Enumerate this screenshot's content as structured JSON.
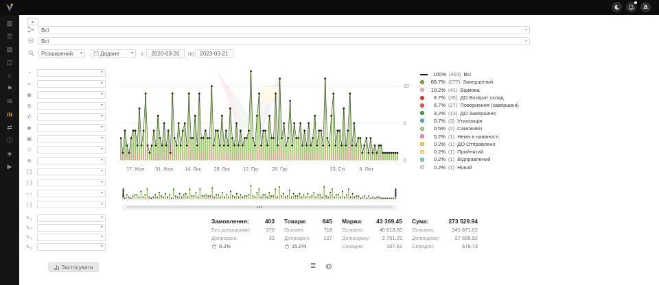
{
  "topbar": {
    "icons": [
      {
        "name": "theme-icon"
      },
      {
        "name": "bell-icon",
        "badge": true
      },
      {
        "name": "notifications-muted-icon"
      }
    ]
  },
  "rail": {
    "items": [
      {
        "name": "dashboard-icon"
      },
      {
        "name": "orders-icon"
      },
      {
        "name": "catalog-icon"
      },
      {
        "name": "clients-icon"
      },
      {
        "name": "shop-icon"
      },
      {
        "name": "tags-icon"
      },
      {
        "name": "campaigns-icon"
      },
      {
        "name": "analytics-icon",
        "active": true
      },
      {
        "name": "integrations-icon"
      },
      {
        "name": "info-icon"
      },
      {
        "name": "apps-icon"
      },
      {
        "name": "video-icon"
      }
    ]
  },
  "header": {
    "filter1": {
      "value": "Всі"
    },
    "filter2": {
      "value": "Всі"
    },
    "search_mode": {
      "value": "Розширений"
    },
    "date_field": {
      "value": "Додане"
    },
    "from_label": "з",
    "date_from": "2020-03-20",
    "to_label": "по",
    "date_to": "2023-03-21"
  },
  "filters": {
    "rows": [
      {
        "icon": "pie-icon"
      },
      {
        "icon": "trend-icon"
      },
      {
        "icon": "person-icon"
      },
      {
        "icon": "group-icon"
      },
      {
        "icon": "phone-icon"
      },
      {
        "icon": "shield-icon"
      },
      {
        "icon": "box-icon"
      },
      {
        "icon": "funnel-icon"
      },
      {
        "icon": "globe-icon"
      },
      {
        "icon": "square-brackets-icon"
      },
      {
        "icon": "curly-brackets-icon"
      },
      {
        "icon": "angle-brackets-icon"
      },
      {
        "icon": "round-brackets-icon"
      },
      {
        "icon": "pencil-1-icon"
      },
      {
        "icon": "pencil-2-icon"
      },
      {
        "icon": "pencil-3-icon"
      },
      {
        "icon": "pencil-4-icon"
      }
    ]
  },
  "legend": [
    {
      "pct": "100%",
      "count": "(403)",
      "label": "Всі",
      "color": "#1a1a1a",
      "swatch": "line"
    },
    {
      "pct": "68.7%",
      "count": "(277)",
      "label": "Завершений",
      "color": "#7cb342",
      "swatch": "dot"
    },
    {
      "pct": "10.2%",
      "count": "(41)",
      "label": "Відмова",
      "color": "#f8bbd0",
      "swatch": "dot"
    },
    {
      "pct": "8.7%",
      "count": "(35)",
      "label": "ДО Возврат склад",
      "color": "#e53935",
      "swatch": "dot"
    },
    {
      "pct": "6.7%",
      "count": "(27)",
      "label": "Повернення (завершені)",
      "color": "#ef5350",
      "swatch": "dot"
    },
    {
      "pct": "3.2%",
      "count": "(13)",
      "label": "ДО Завершено",
      "color": "#43a047",
      "swatch": "dot"
    },
    {
      "pct": "0.7%",
      "count": "(3)",
      "label": "Утилізація",
      "color": "#4db6ac",
      "swatch": "dot"
    },
    {
      "pct": "0.5%",
      "count": "(2)",
      "label": "Самовивіз",
      "color": "#aed581",
      "swatch": "dot"
    },
    {
      "pct": "0.2%",
      "count": "(1)",
      "label": "Нема в наявності",
      "color": "#f48fb1",
      "swatch": "dot"
    },
    {
      "pct": "0.2%",
      "count": "(1)",
      "label": "ДО Отправлено",
      "color": "#fdd835",
      "swatch": "dot"
    },
    {
      "pct": "0.2%",
      "count": "(1)",
      "label": "Прийнятий",
      "color": "#fff176",
      "swatch": "dot"
    },
    {
      "pct": "0.2%",
      "count": "(1)",
      "label": "Відправлений",
      "color": "#80cbc4",
      "swatch": "dot"
    },
    {
      "pct": "0.2%",
      "count": "(1)",
      "label": "Новий",
      "color": "#e0e0e0",
      "swatch": "dot"
    }
  ],
  "chart_data": {
    "type": "bar",
    "title": "",
    "xlabel": "",
    "ylabel": "",
    "ylim": [
      0,
      12
    ],
    "yticks": [
      0,
      5,
      10
    ],
    "x_tick_labels": [
      {
        "i": 7,
        "label": "17. Жов"
      },
      {
        "i": 21,
        "label": "31. Жов"
      },
      {
        "i": 35,
        "label": "14. Лис"
      },
      {
        "i": 49,
        "label": "28. Лис"
      },
      {
        "i": 63,
        "label": "12. Гру"
      },
      {
        "i": 77,
        "label": "26. Гру"
      },
      {
        "i": 105,
        "label": "23. Січ"
      },
      {
        "i": 119,
        "label": "6. Лют"
      }
    ],
    "series": [
      {
        "name": "Завершений",
        "color": "#9ccc65",
        "values": [
          2,
          1,
          3,
          2,
          1,
          2,
          4,
          3,
          2,
          6,
          2,
          3,
          7,
          2,
          1,
          2,
          3,
          2,
          5,
          3,
          2,
          4,
          2,
          3,
          1,
          7,
          3,
          2,
          4,
          2,
          3,
          5,
          2,
          7,
          3,
          2,
          6,
          2,
          8,
          3,
          2,
          4,
          3,
          2,
          8,
          2,
          3,
          4,
          2,
          5,
          2,
          3,
          2,
          6,
          3,
          2,
          4,
          2,
          3,
          2,
          3,
          2,
          4,
          11,
          3,
          2,
          5,
          7,
          2,
          3,
          4,
          2,
          5,
          3,
          2,
          8,
          2,
          9,
          3,
          4,
          2,
          3,
          7,
          2,
          4,
          3,
          2,
          5,
          2,
          3,
          2,
          4,
          2,
          3,
          5,
          2,
          3,
          4,
          2,
          9,
          3,
          2,
          5,
          8,
          2,
          3,
          4,
          2,
          6,
          2,
          3,
          7,
          2,
          4,
          2,
          3,
          2,
          1,
          2,
          3,
          1,
          2,
          1,
          2,
          1,
          1,
          2,
          1,
          1,
          1,
          1,
          1,
          1,
          1,
          1
        ]
      },
      {
        "name": "Відмова / повернення",
        "color": "#ef9a9a",
        "values": [
          1,
          0,
          1,
          0,
          0,
          1,
          0,
          1,
          0,
          1,
          0,
          1,
          2,
          0,
          0,
          0,
          1,
          0,
          1,
          0,
          0,
          1,
          0,
          1,
          0,
          2,
          0,
          0,
          1,
          0,
          1,
          0,
          0,
          2,
          0,
          1,
          0,
          0,
          1,
          0,
          1,
          0,
          0,
          1,
          2,
          0,
          1,
          0,
          0,
          1,
          0,
          1,
          0,
          1,
          0,
          0,
          1,
          0,
          1,
          0,
          0,
          1,
          0,
          1,
          0,
          0,
          1,
          2,
          0,
          1,
          0,
          0,
          1,
          0,
          1,
          1,
          0,
          2,
          0,
          1,
          0,
          0,
          1,
          0,
          1,
          0,
          1,
          0,
          0,
          1,
          0,
          1,
          0,
          0,
          1,
          0,
          1,
          0,
          0,
          2,
          0,
          0,
          1,
          1,
          0,
          1,
          0,
          0,
          1,
          0,
          1,
          2,
          0,
          1,
          0,
          0,
          1,
          0,
          0,
          0,
          0,
          1,
          0,
          0,
          0,
          1,
          0,
          0,
          0,
          0,
          0,
          0,
          0,
          0,
          0
        ]
      }
    ],
    "line": {
      "name": "Всі",
      "color": "#212121"
    }
  },
  "stats": {
    "columns": [
      {
        "title": "Замовлення:",
        "value": "403",
        "rows": [
          {
            "label": "Без допродажів:",
            "value": "370"
          },
          {
            "label": "Допродані:",
            "value": "33"
          }
        ],
        "upsell": {
          "value": "8.2%"
        }
      },
      {
        "title": "Товари:",
        "value": "845",
        "rows": [
          {
            "label": "Основні:",
            "value": "718"
          },
          {
            "label": "Допродані:",
            "value": "127"
          }
        ],
        "upsell": {
          "value": "15.0%"
        }
      },
      {
        "title": "Маржа:",
        "value": "43 369.45",
        "rows": [
          {
            "label": "Основна:",
            "value": "40 618.20"
          },
          {
            "label": "Допродажу:",
            "value": "2 751.25"
          },
          {
            "label": "Середня:",
            "value": "107.62"
          }
        ]
      },
      {
        "title": "Сума:",
        "value": "273 529.94",
        "rows": [
          {
            "label": "Основна:",
            "value": "245 871.02"
          },
          {
            "label": "Допродажу:",
            "value": "27 658.92"
          },
          {
            "label": "Середня:",
            "value": "678.73"
          }
        ]
      }
    ]
  },
  "toolbar": {
    "apply_label": "Застосувати"
  }
}
